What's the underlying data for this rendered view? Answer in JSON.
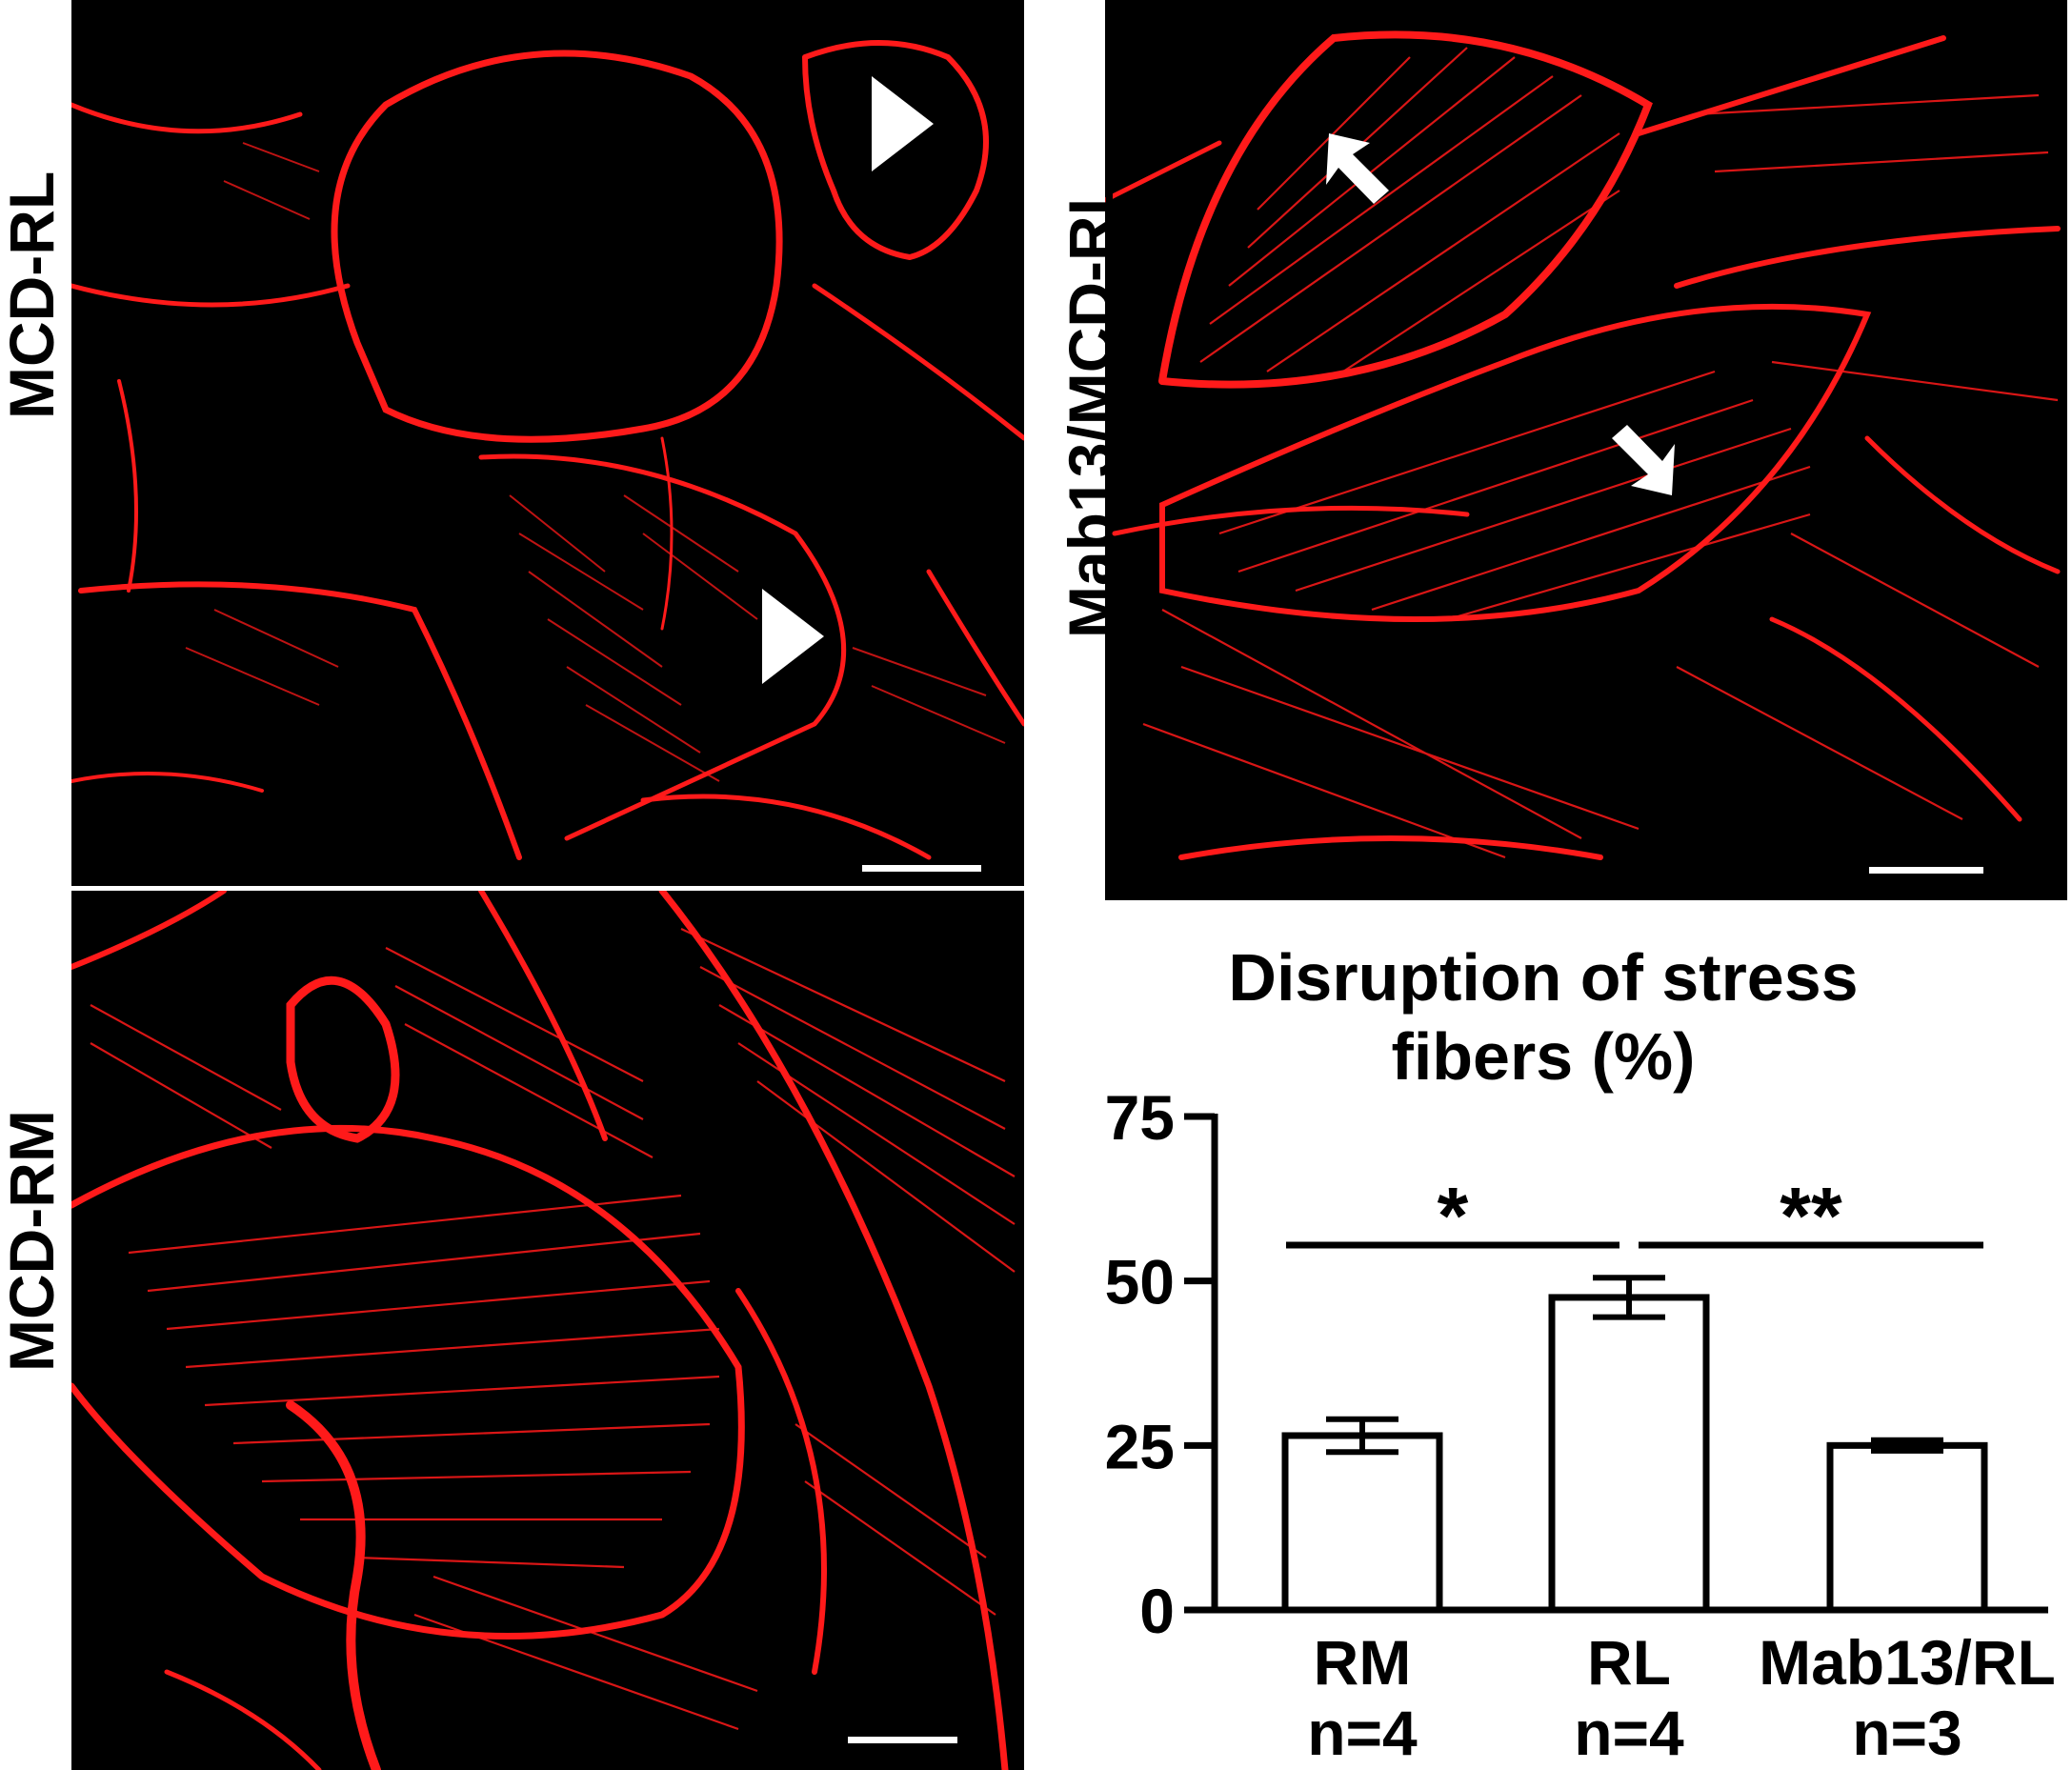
{
  "figure": {
    "panel_labels": {
      "top_left": "MCD-RL",
      "bottom_left": "MCD-RM",
      "top_right": "Mab13/MCD-RL"
    },
    "colors": {
      "stain": "#ff1a1a",
      "background": "#000000",
      "annotation": "#ffffff"
    },
    "annotations": {
      "top_left": [
        "arrowhead-marker",
        "arrowhead-marker"
      ],
      "top_right": [
        "arrow-marker",
        "arrow-marker"
      ]
    }
  },
  "chart_data": {
    "type": "bar",
    "title_line1": "Disruption of stress",
    "title_line2": "fibers (%)",
    "categories": [
      "RM",
      "RL",
      "Mab13/RL"
    ],
    "sample_sizes": [
      "n=4",
      "n=4",
      "n=3"
    ],
    "values": [
      26.5,
      47.5,
      25
    ],
    "errors": [
      2.5,
      3,
      0.8
    ],
    "ylim": [
      0,
      75
    ],
    "yticks": [
      "0",
      "25",
      "50",
      "75"
    ],
    "significance": [
      {
        "from": "RM",
        "to": "RL",
        "label": "*"
      },
      {
        "from": "RL",
        "to": "Mab13/RL",
        "label": "**"
      }
    ],
    "grid": false,
    "bar_fill": "#ffffff",
    "bar_stroke": "#000000"
  }
}
